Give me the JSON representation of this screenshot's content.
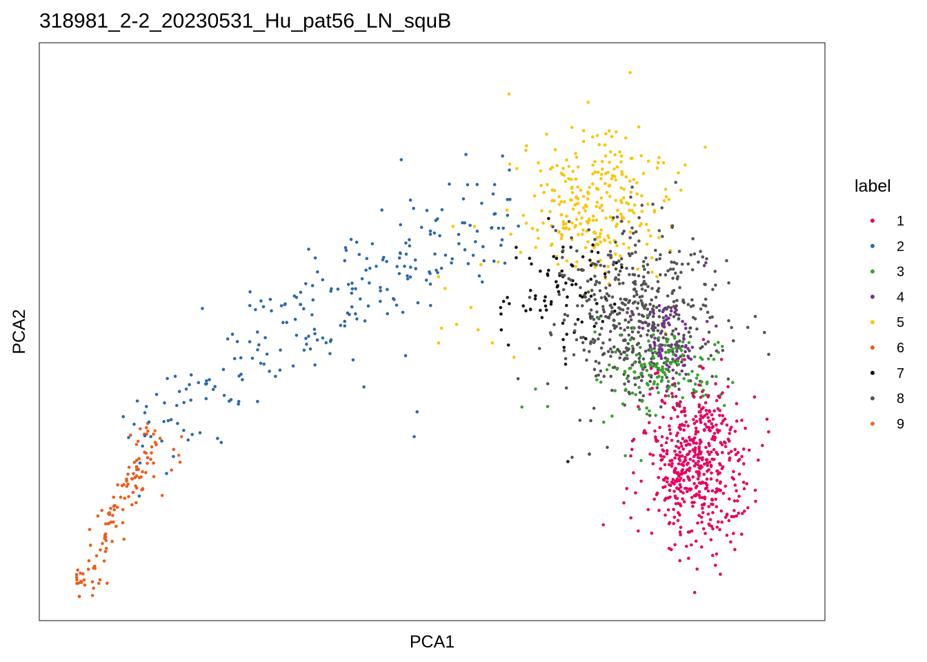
{
  "chart_data": {
    "type": "scatter",
    "title": "318981_2-2_20230531_Hu_pat56_LN_squB",
    "xlabel": "PCA1",
    "ylabel": "PCA2",
    "xlim": [
      0,
      100
    ],
    "ylim": [
      0,
      100
    ],
    "axis_ticks": false,
    "grid": false,
    "legend": {
      "title": "label",
      "position": "right"
    },
    "series": [
      {
        "name": "1",
        "color": "#e7005f",
        "n": 520,
        "clusters": [
          {
            "center": [
              87,
              25
            ],
            "spread": [
              3.4,
              7.5
            ],
            "weight": 1
          }
        ],
        "points": [
          [
            84.6,
            6.9
          ],
          [
            87.0,
            5.3
          ],
          [
            78.8,
            12.5
          ],
          [
            76.8,
            17.8
          ],
          [
            95.1,
            20.2
          ],
          [
            95.0,
            37.8
          ],
          [
            90.4,
            44.9
          ],
          [
            87.5,
            43.6
          ]
        ]
      },
      {
        "name": "2",
        "color": "#2c69aa",
        "n": 230,
        "clusters": [
          {
            "center": [
              28,
              55
            ],
            "spread": [
              10,
              10
            ],
            "weight": 1
          }
        ],
        "points": [
          [
            10.3,
            36.0
          ],
          [
            15.5,
            31.5
          ],
          [
            18.1,
            54.5
          ],
          [
            27.1,
            45.9
          ],
          [
            32.9,
            65.7
          ],
          [
            43.1,
            73.1
          ],
          [
            45.8,
            82.6
          ],
          [
            54.8,
            83.6
          ],
          [
            58.8,
            77.9
          ],
          [
            59.9,
            83.3
          ],
          [
            47.6,
            30.3
          ],
          [
            46.4,
            45.6
          ],
          [
            40.6,
            39.7
          ],
          [
            48.0,
            35.0
          ],
          [
            60.6,
            72.1
          ],
          [
            52.5,
            78.0
          ]
        ]
      },
      {
        "name": "3",
        "color": "#3aa02f",
        "n": 150,
        "clusters": [
          {
            "center": [
              82,
              43
            ],
            "spread": [
              4,
              4
            ],
            "weight": 1
          }
        ],
        "points": [
          [
            62.6,
            35.9
          ],
          [
            64.5,
            39.3
          ],
          [
            66.2,
            36.0
          ],
          [
            73.6,
            40.6
          ],
          [
            77.0,
            26.7
          ],
          [
            79.2,
            25.8
          ],
          [
            87.3,
            43.6
          ],
          [
            90.8,
            36.2
          ]
        ]
      },
      {
        "name": "4",
        "color": "#7b2e96",
        "n": 80,
        "clusters": [
          {
            "center": [
              83.5,
              48
            ],
            "spread": [
              2.5,
              4
            ],
            "weight": 1
          }
        ],
        "points": [
          [
            88.0,
            62.6
          ],
          [
            78.0,
            29.5
          ]
        ]
      },
      {
        "name": "5",
        "color": "#fcc500",
        "n": 270,
        "clusters": [
          {
            "center": [
              73,
              74
            ],
            "spread": [
              5,
              7
            ],
            "weight": 1
          }
        ],
        "points": [
          [
            60.8,
            95.0
          ],
          [
            62.8,
            72.1
          ],
          [
            56.9,
            62.8
          ],
          [
            51.9,
            58.3
          ],
          [
            51.4,
            50.8
          ],
          [
            51.0,
            48.0
          ],
          [
            55.5,
            54.7
          ],
          [
            56.5,
            50.5
          ],
          [
            58.5,
            48.0
          ],
          [
            53.5,
            51.5
          ],
          [
            59.3,
            63.3
          ],
          [
            61.5,
            45.3
          ],
          [
            51.0,
            60.5
          ],
          [
            53.0,
            70.0
          ],
          [
            56.0,
            70.0
          ]
        ]
      },
      {
        "name": "6",
        "color": "#f05a19",
        "n": 115,
        "clusters": [
          {
            "center": [
              6,
              17
            ],
            "spread": [
              2.5,
              7
            ],
            "weight": 1
          }
        ],
        "points": [
          [
            11.3,
            30.8
          ],
          [
            9.8,
            20.5
          ],
          [
            12.5,
            19.2
          ],
          [
            14.1,
            27.9
          ],
          [
            13.8,
            24.0
          ],
          [
            8.8,
            21.0
          ],
          [
            10.3,
            32.0
          ],
          [
            12.2,
            30.0
          ],
          [
            15.0,
            25.5
          ]
        ]
      },
      {
        "name": "7",
        "color": "#111111",
        "n": 80,
        "clusters": [
          {
            "center": [
              68,
              58
            ],
            "spread": [
              4.5,
              5
            ],
            "weight": 1
          }
        ],
        "points": [
          [
            72.0,
            27.0
          ],
          [
            69.0,
            25.6
          ],
          [
            71.5,
            48.8
          ],
          [
            65.4,
            52.8
          ],
          [
            66.7,
            55.8
          ]
        ]
      },
      {
        "name": "8",
        "color": "#545454",
        "n": 520,
        "clusters": [
          {
            "center": [
              79,
              54
            ],
            "spread": [
              5.5,
              8
            ],
            "weight": 1
          }
        ],
        "points": [
          [
            69.6,
            26.4
          ],
          [
            72.0,
            27.0
          ],
          [
            66.2,
            40.3
          ],
          [
            68.8,
            39.5
          ],
          [
            91.4,
            52.2
          ],
          [
            88.2,
            55.0
          ],
          [
            74.5,
            28.3
          ]
        ]
      },
      {
        "name": "9",
        "color": "#f26a1e",
        "n": 0,
        "clusters": [],
        "points": [
          [
            11.5,
            31.4
          ],
          [
            14.8,
            26.8
          ],
          [
            15.2,
            30.3
          ]
        ]
      }
    ]
  }
}
